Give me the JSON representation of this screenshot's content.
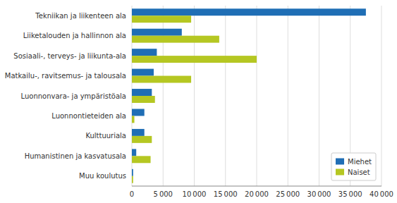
{
  "chart_data": {
    "type": "bar",
    "orientation": "horizontal",
    "categories": [
      "Tekniikan ja liikenteen ala",
      "Liiketalouden ja hallinnon ala",
      "Sosiaali-, terveys- ja liikunta-ala",
      "Matkailu-, ravitsemus- ja talousala",
      "Luonnonvara- ja ympäristöala",
      "Luonnontieteiden ala",
      "Kulttuuriala",
      "Humanistinen ja kasvatusala",
      "Muu koulutus"
    ],
    "series": [
      {
        "name": "Miehet",
        "color": "#1f6eb5",
        "values": [
          37500,
          8000,
          4000,
          3500,
          3200,
          2000,
          2000,
          700,
          200
        ]
      },
      {
        "name": "Naiset",
        "color": "#b5c722",
        "values": [
          9500,
          14000,
          20000,
          9500,
          3700,
          400,
          3200,
          3000,
          200
        ]
      }
    ],
    "xlim": [
      0,
      40000
    ],
    "xticks": [
      0,
      {
        "value": 5000,
        "label": "5 000"
      },
      {
        "value": 10000,
        "label": "10 000"
      },
      {
        "value": 15000,
        "label": "15 000"
      },
      {
        "value": 20000,
        "label": "20 000"
      },
      {
        "value": 25000,
        "label": "25 000"
      },
      {
        "value": 30000,
        "label": "30 000"
      },
      {
        "value": 35000,
        "label": "35 000"
      },
      {
        "value": 40000,
        "label": "40 000"
      }
    ],
    "grid": true,
    "legend": "lower right"
  }
}
